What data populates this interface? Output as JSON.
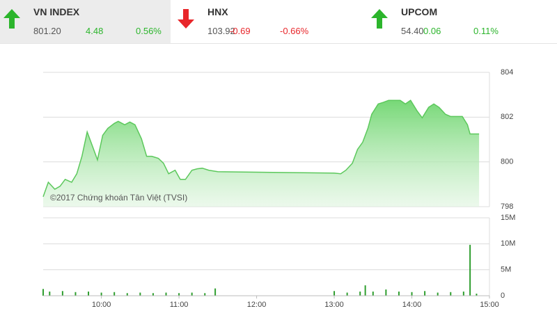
{
  "indices": [
    {
      "name": "VN INDEX",
      "last": "801.20",
      "change": "4.48",
      "percent": "0.56%",
      "direction": "up",
      "selected": true
    },
    {
      "name": "HNX",
      "last": "103.92",
      "change": "-0.69",
      "percent": "-0.66%",
      "direction": "down",
      "selected": false
    },
    {
      "name": "UPCOM",
      "last": "54.40",
      "change": "0.06",
      "percent": "0.11%",
      "direction": "up",
      "selected": false
    }
  ],
  "chart_data": [
    {
      "type": "area",
      "color": "#5cc85c",
      "annotation": "©2017 Chứng khoán Tân Việt (TVSI)",
      "x": [
        "09:15",
        "09:19",
        "09:24",
        "09:28",
        "09:32",
        "09:37",
        "09:41",
        "09:45",
        "09:49",
        "09:53",
        "09:57",
        "10:01",
        "10:05",
        "10:10",
        "10:13",
        "10:18",
        "10:22",
        "10:26",
        "10:31",
        "10:35",
        "10:39",
        "10:44",
        "10:48",
        "10:52",
        "10:57",
        "11:01",
        "11:05",
        "11:10",
        "11:14",
        "11:18",
        "11:23",
        "11:30",
        "13:00",
        "13:05",
        "13:09",
        "13:14",
        "13:18",
        "13:22",
        "13:26",
        "13:29",
        "13:34",
        "13:38",
        "13:42",
        "13:47",
        "13:51",
        "13:55",
        "13:59",
        "14:04",
        "14:08",
        "14:13",
        "14:17",
        "14:21",
        "14:26",
        "14:30",
        "14:34",
        "14:39",
        "14:43",
        "14:45",
        "14:52"
      ],
      "values": [
        798.44,
        799.09,
        798.78,
        798.91,
        799.22,
        799.09,
        799.47,
        800.25,
        801.34,
        800.72,
        800.09,
        801.19,
        801.5,
        801.72,
        801.81,
        801.66,
        801.78,
        801.66,
        801.03,
        800.25,
        800.25,
        800.16,
        799.94,
        799.47,
        799.63,
        799.22,
        799.22,
        799.63,
        799.69,
        799.72,
        799.63,
        799.56,
        799.5,
        799.47,
        799.63,
        799.94,
        800.56,
        800.88,
        801.5,
        802.13,
        802.59,
        802.66,
        802.75,
        802.75,
        802.75,
        802.59,
        802.75,
        802.28,
        801.97,
        802.44,
        802.59,
        802.44,
        802.13,
        802.03,
        802.03,
        802.03,
        801.66,
        801.25,
        801.25
      ],
      "xlim": [
        "09:15",
        "15:00"
      ],
      "ylim": [
        798,
        804
      ],
      "yticks": [
        798,
        800,
        802,
        804
      ],
      "grid": true
    },
    {
      "type": "bar",
      "color": "#2e9e2e",
      "x": [
        "09:15",
        "09:20",
        "09:30",
        "09:40",
        "09:50",
        "10:00",
        "10:10",
        "10:20",
        "10:30",
        "10:40",
        "10:50",
        "11:00",
        "11:10",
        "11:20",
        "11:28",
        "13:00",
        "13:10",
        "13:20",
        "13:24",
        "13:30",
        "13:40",
        "13:50",
        "14:00",
        "14:10",
        "14:20",
        "14:30",
        "14:40",
        "14:45",
        "14:50"
      ],
      "values": [
        1300000,
        800000,
        900000,
        700000,
        800000,
        600000,
        700000,
        500000,
        600000,
        500000,
        600000,
        500000,
        600000,
        500000,
        1400000,
        900000,
        600000,
        800000,
        2000000,
        800000,
        1200000,
        800000,
        700000,
        900000,
        600000,
        700000,
        800000,
        9800000,
        400000
      ],
      "xlim": [
        "09:15",
        "15:00"
      ],
      "ylim": [
        0,
        15000000
      ],
      "yticks": [
        0,
        {
          "value": 5000000,
          "label": "5M"
        },
        {
          "value": 10000000,
          "label": "10M"
        },
        {
          "value": 15000000,
          "label": "15M"
        }
      ],
      "xticks": [
        "10:00",
        "11:00",
        "12:00",
        "13:00",
        "14:00",
        "15:00"
      ],
      "grid": true
    }
  ]
}
